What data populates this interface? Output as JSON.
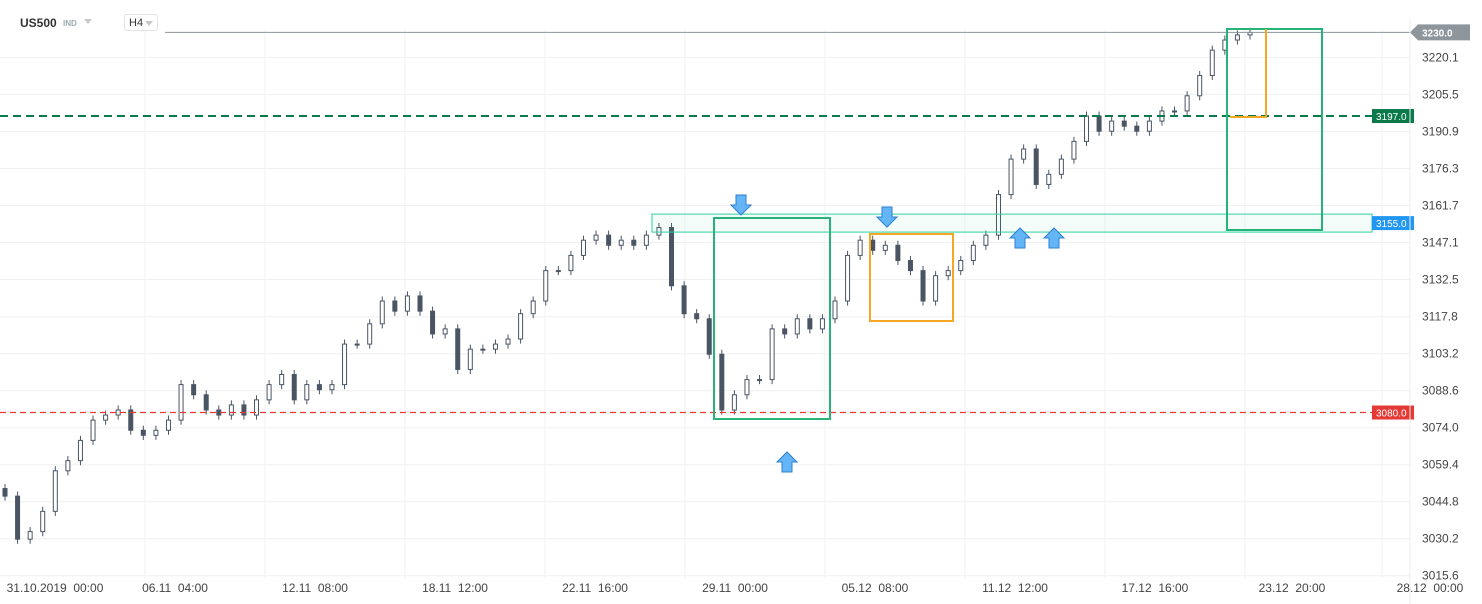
{
  "header": {
    "symbol": "US500",
    "instrument_type": "IND",
    "timeframe": "H4"
  },
  "colors": {
    "up": "#4a5563",
    "down": "#4a5563",
    "green_level": "#0b7a4b",
    "red_level": "#e53935",
    "zone": "#2fd1a0",
    "zone_tag": "#2196f3",
    "box_green": "#26b37a",
    "box_orange": "#f5a623",
    "arrow": "#64b5f6",
    "price_tag": "#8e969c"
  },
  "chart_data": {
    "type": "candlestick",
    "title": "",
    "ylim": [
      3015.6,
      3230.0
    ],
    "y_ticks": [
      "3220.1",
      "3205.5",
      "3190.9",
      "3176.3",
      "3161.7",
      "3147.1",
      "3132.5",
      "3117.8",
      "3103.2",
      "3088.6",
      "3074.0",
      "3059.4",
      "3044.8",
      "3030.2",
      "3015.6"
    ],
    "x_ticks": [
      "31.10.2019  00:00",
      "06.11  04:00",
      "12.11  08:00",
      "18.11  12:00",
      "22.11  16:00",
      "29.11  00:00",
      "05.12  08:00",
      "11.12  12:00",
      "17.12  16:00",
      "23.12  20:00",
      "28.12  00:00"
    ],
    "grid": true,
    "closes": [
      3047,
      3030,
      3033,
      3041,
      3057,
      3061,
      3069,
      3077,
      3079,
      3081,
      3073,
      3071,
      3073,
      3077,
      3091,
      3087,
      3081,
      3079,
      3083,
      3079,
      3085,
      3091,
      3095,
      3085,
      3091,
      3089,
      3091,
      3107,
      3107,
      3115,
      3124,
      3120,
      3126,
      3120,
      3111,
      3113,
      3097,
      3105,
      3105,
      3107,
      3109,
      3119,
      3124,
      3136,
      3136,
      3142,
      3148,
      3150,
      3146,
      3148,
      3146,
      3150,
      3153,
      3130,
      3119,
      3117,
      3103,
      3081,
      3087,
      3093,
      3093,
      3113,
      3111,
      3117,
      3113,
      3117,
      3124,
      3142,
      3148,
      3144,
      3146,
      3140,
      3136,
      3124,
      3134,
      3136,
      3140,
      3146,
      3150,
      3166,
      3180,
      3184,
      3170,
      3174,
      3180,
      3187,
      3197,
      3191,
      3195,
      3193,
      3191,
      3195,
      3199,
      3199,
      3205,
      3213,
      3223,
      3227,
      3229,
      3230
    ],
    "current_price": "3230.0",
    "levels": [
      {
        "label": "3197.0",
        "value": 3197.0,
        "color": "#0b7a4b",
        "style": "dashed"
      },
      {
        "label": "3080.0",
        "value": 3080.0,
        "color": "#e53935",
        "style": "dashed"
      }
    ],
    "zone": {
      "label": "3155.0",
      "top": 3158.3,
      "bottom": 3151.2
    }
  }
}
